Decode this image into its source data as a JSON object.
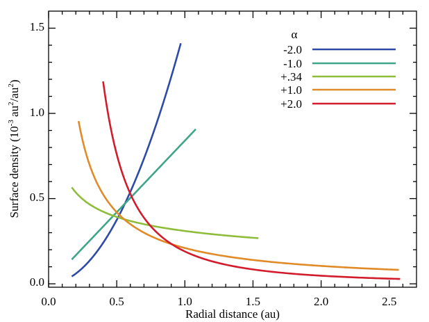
{
  "chart_data": {
    "type": "line",
    "title": "",
    "xlabel": "Radial distance (au)",
    "ylabel": "Surface density (10^-3 au^2/au^2)",
    "ylabel_parts": {
      "prefix": "Surface density (10",
      "exp1": "-3",
      "mid": " au",
      "exp2": "2",
      "slash": "/au",
      "exp3": "2",
      "suffix": ")"
    },
    "xlim": [
      0.0,
      2.7
    ],
    "ylim": [
      -0.02,
      1.6
    ],
    "xticks": [
      0.0,
      0.5,
      1.0,
      1.5,
      2.0,
      2.5
    ],
    "xtick_labels": [
      "0.0",
      "0.5",
      "1.0",
      "1.5",
      "2.0",
      "2.5"
    ],
    "yticks": [
      0.0,
      0.5,
      1.0,
      1.5
    ],
    "ytick_labels": [
      "0.0",
      "0.5",
      "1.0",
      "1.5"
    ],
    "legend": {
      "title": "α",
      "placement": "top-right"
    },
    "series": [
      {
        "name": "-2.0",
        "color": "#2e4aa8",
        "alpha": -2.0,
        "k": 1.5,
        "x_range": [
          0.17,
          0.97
        ]
      },
      {
        "name": "-1.0",
        "color": "#3fa588",
        "alpha": -1.0,
        "k": 0.84,
        "x_range": [
          0.17,
          1.08
        ]
      },
      {
        "name": "+.34",
        "color": "#8fbd3b",
        "alpha": 0.34,
        "k": 0.31,
        "x_range": [
          0.17,
          1.54
        ]
      },
      {
        "name": "+1.0",
        "color": "#e08a28",
        "alpha": 1.0,
        "k": 0.21,
        "x_range": [
          0.22,
          2.57
        ]
      },
      {
        "name": "+2.0",
        "color": "#d21c2c",
        "alpha": 2.0,
        "k": 0.19,
        "x_range": [
          0.4,
          2.58
        ]
      }
    ]
  }
}
